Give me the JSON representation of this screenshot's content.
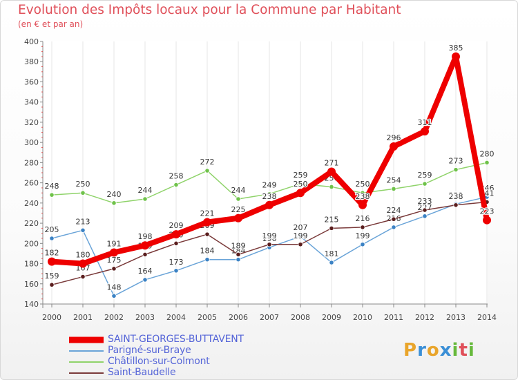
{
  "header": {
    "title": "Evolution des Impôts locaux pour la Commune par Habitant",
    "subtitle": "(en € et par an)"
  },
  "logo": {
    "text": "Proxiti",
    "colors": [
      "#e9a52b",
      "#3b8fd6",
      "#e9a52b",
      "#3b8fd6",
      "#67b93c",
      "#e0505a",
      "#67b93c"
    ]
  },
  "colors": {
    "title": "#e0505a",
    "legend_text": "#5565d8",
    "axis": "#555555",
    "grid": "#e6e6e6"
  },
  "chart_data": {
    "type": "line",
    "title": "Evolution des Impôts locaux pour la Commune par Habitant",
    "subtitle": "(en € et par an)",
    "xlabel": "",
    "ylabel": "",
    "x": [
      "2000",
      "2001",
      "2002",
      "2003",
      "2004",
      "2005",
      "2006",
      "2007",
      "2008",
      "2009",
      "2010",
      "2011",
      "2012",
      "2013",
      "2014"
    ],
    "ylim": [
      140,
      400
    ],
    "yticks": [
      "140",
      "160",
      "180",
      "200",
      "220",
      "240",
      "260",
      "280",
      "300",
      "320",
      "340",
      "360",
      "380",
      "400"
    ],
    "grid": true,
    "legend_position": "bottom-left",
    "series": [
      {
        "name": "Châtillon-sur-Colmont",
        "color": "#8fd36a",
        "marker": "#6fc24a",
        "values": [
          248,
          250,
          240,
          244,
          258,
          272,
          244,
          249,
          259,
          256,
          250,
          254,
          259,
          273,
          280
        ],
        "labels": [
          "248",
          "250",
          "240",
          "244",
          "258",
          "272",
          "244",
          "249",
          "259",
          "256",
          "250",
          "254",
          "259",
          "273",
          "280"
        ]
      },
      {
        "name": "Parigné-sur-Braye",
        "color": "#6aa4d8",
        "marker": "#3b82c4",
        "values": [
          205,
          213,
          148,
          164,
          173,
          184,
          184,
          196,
          207,
          181,
          199,
          216,
          227,
          239,
          246
        ],
        "labels": [
          "205",
          "213",
          "148",
          "164",
          "173",
          "184",
          "184",
          "196",
          "207",
          "181",
          "199",
          "216",
          "227",
          "239",
          "246"
        ]
      },
      {
        "name": "Saint-Baudelle",
        "color": "#7a3a3a",
        "marker": "#5a1e1e",
        "values": [
          159,
          167,
          175,
          189,
          200,
          209,
          189,
          199,
          199,
          215,
          216,
          224,
          233,
          238,
          241
        ],
        "labels": [
          "159",
          "167",
          "175",
          "189",
          "200",
          "209",
          "189",
          "199",
          "199",
          "215",
          "216",
          "224",
          "233",
          "238",
          "241"
        ]
      },
      {
        "name": "SAINT-GEORGES-BUTTAVENT",
        "color": "#ee0000",
        "marker": "#ee0000",
        "values": [
          182,
          180,
          191,
          198,
          209,
          221,
          225,
          238,
          250,
          271,
          238,
          296,
          311,
          385,
          223
        ],
        "labels": [
          "182",
          "180",
          "191",
          "198",
          "209",
          "221",
          "225",
          "238",
          "250",
          "271",
          "238",
          "296",
          "311",
          "385",
          "223"
        ]
      }
    ],
    "legend": [
      "SAINT-GEORGES-BUTTAVENT",
      "Parigné-sur-Braye",
      "Châtillon-sur-Colmont",
      "Saint-Baudelle"
    ]
  }
}
